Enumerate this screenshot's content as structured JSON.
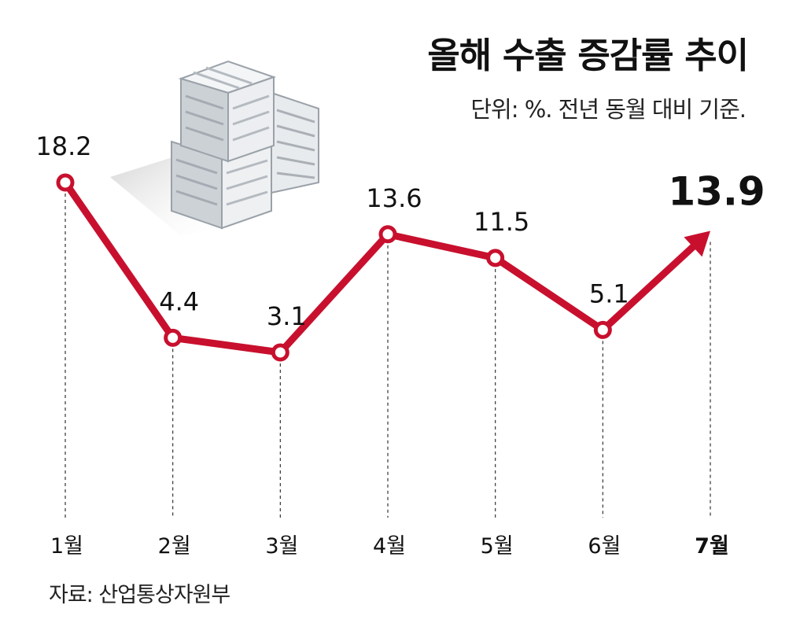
{
  "header": {
    "title": "올해 수출 증감률 추이",
    "subtitle": "단위: %. 전년 동월 대비 기준."
  },
  "footer": {
    "source": "자료: 산업통상자원부"
  },
  "colors": {
    "line": "#c8102e",
    "text": "#111111",
    "guide": "#333333",
    "box_face": "#e4e7ea",
    "box_shade": "#b8bec4"
  },
  "illustration": {
    "icon": "stacked-crates-icon"
  },
  "chart_data": {
    "type": "line",
    "title": "올해 수출 증감률 추이",
    "subtitle": "단위: %. 전년 동월 대비 기준.",
    "xlabel": "",
    "ylabel": "",
    "categories": [
      "1월",
      "2월",
      "3월",
      "4월",
      "5월",
      "6월",
      "7월"
    ],
    "series": [
      {
        "values": [
          18.2,
          4.4,
          3.1,
          13.6,
          11.5,
          5.1,
          13.9
        ],
        "labels": [
          "18.2",
          "4.4",
          "3.1",
          "13.6",
          "11.5",
          "5.1",
          "13.9"
        ]
      }
    ],
    "highlight_last": true,
    "grid": false,
    "legend": "none",
    "source": "자료: 산업통상자원부"
  }
}
